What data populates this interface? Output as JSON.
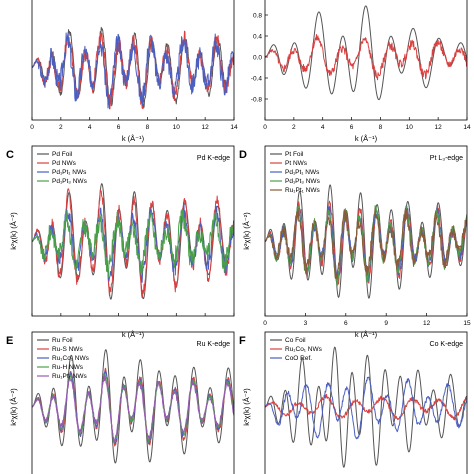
{
  "chart_data": [
    {
      "panel": "A",
      "label": "",
      "edge": "",
      "type": "line",
      "xlabel": "k (Å⁻¹)",
      "ylabel": "",
      "xlim": [
        0,
        14
      ],
      "ylim": [
        -0.75,
        1.05
      ],
      "xticks": [
        0,
        2,
        4,
        6,
        8,
        10,
        12,
        14
      ],
      "yticks": [],
      "ytick_labels": [],
      "show_xlabel": true,
      "show_xticklabels": true,
      "cut_top": true,
      "series": [
        {
          "name": "",
          "color": "#555555",
          "amp": 0.55,
          "freq": 5.5,
          "phase": 0.0,
          "decay": 0.05,
          "noise": 0.05,
          "seed": 1
        },
        {
          "name": "",
          "color": "#d94040",
          "amp": 0.5,
          "freq": 5.5,
          "phase": 0.25,
          "decay": 0.05,
          "noise": 0.12,
          "seed": 2
        },
        {
          "name": "",
          "color": "#4a5fc0",
          "amp": 0.45,
          "freq": 5.5,
          "phase": 0.5,
          "decay": 0.05,
          "noise": 0.15,
          "seed": 3
        }
      ],
      "legend": []
    },
    {
      "panel": "B",
      "label": "",
      "edge": "",
      "type": "line",
      "xlabel": "k (Å⁻¹)",
      "ylabel": "",
      "xlim": [
        0,
        14
      ],
      "ylim": [
        -1.2,
        1.2
      ],
      "xticks": [
        0,
        2,
        4,
        6,
        8,
        10,
        12,
        14
      ],
      "yticks": [
        0.8,
        0.4,
        0.0,
        -0.4,
        -0.8
      ],
      "ytick_labels": [
        "0.8",
        "0.4",
        "0.0",
        "-0.4",
        "-0.8"
      ],
      "show_xlabel": true,
      "show_xticklabels": true,
      "cut_top": true,
      "series": [
        {
          "name": "",
          "color": "#555555",
          "amp": 1.05,
          "freq": 3.8,
          "phase": 0.0,
          "decay": 0.13,
          "noise": 0.0,
          "seed": 4
        },
        {
          "name": "",
          "color": "#d94040",
          "amp": 0.35,
          "freq": 3.8,
          "phase": 0.3,
          "decay": 0.02,
          "noise": 0.08,
          "seed": 5
        }
      ],
      "legend": []
    },
    {
      "panel": "C",
      "label": "C",
      "edge": "Pd K-edge",
      "type": "line",
      "xlabel": "k (Å⁻¹)",
      "ylabel": "k²χ(k) (Å⁻²)",
      "xlim": [
        0,
        14
      ],
      "ylim": [
        -1.4,
        1.8
      ],
      "xticks": [
        0,
        2,
        4,
        6,
        8,
        10,
        12,
        14
      ],
      "yticks": [],
      "ytick_labels": [],
      "show_xlabel": true,
      "show_xticklabels": false,
      "cut_top": false,
      "series": [
        {
          "name": "Pd Foil",
          "color": "#555555",
          "amp": 1.15,
          "freq": 5.5,
          "phase": 0.0,
          "decay": 0.09,
          "noise": 0.0,
          "seed": 6
        },
        {
          "name": "Pd NWs",
          "color": "#d94040",
          "amp": 0.95,
          "freq": 5.5,
          "phase": 0.15,
          "decay": 0.04,
          "noise": 0.12,
          "seed": 7
        },
        {
          "name": "Pd₁Pt₁ NWs",
          "color": "#4a5fc0",
          "amp": 0.6,
          "freq": 5.5,
          "phase": 0.4,
          "decay": 0.02,
          "noise": 0.15,
          "seed": 8
        },
        {
          "name": "Pd₁Pt₃ NWs",
          "color": "#4aa04a",
          "amp": 0.45,
          "freq": 5.5,
          "phase": 0.7,
          "decay": 0.01,
          "noise": 0.18,
          "seed": 9
        }
      ],
      "legend": [
        "Pd Foil",
        "Pd NWs",
        "Pd₁Pt₁ NWs",
        "Pd₁Pt₃ NWs"
      ]
    },
    {
      "panel": "D",
      "label": "D",
      "edge": "Pt L₃-edge",
      "type": "line",
      "xlabel": "k (Å⁻¹)",
      "ylabel": "k²χ(k) (Å⁻²)",
      "xlim": [
        0,
        15
      ],
      "ylim": [
        -1.4,
        1.8
      ],
      "xticks": [
        0,
        3,
        6,
        9,
        12,
        15
      ],
      "yticks": [],
      "ytick_labels": [],
      "show_xlabel": true,
      "show_xticklabels": true,
      "cut_top": false,
      "series": [
        {
          "name": "Pt Foil",
          "color": "#555555",
          "amp": 1.1,
          "freq": 5.5,
          "phase": 0.0,
          "decay": 0.07,
          "noise": 0.0,
          "seed": 10
        },
        {
          "name": "Pt NWs",
          "color": "#d94040",
          "amp": 0.75,
          "freq": 5.5,
          "phase": 0.2,
          "decay": 0.05,
          "noise": 0.1,
          "seed": 11
        },
        {
          "name": "Pd₁Pt₁ NWs",
          "color": "#4a5fc0",
          "amp": 0.65,
          "freq": 5.5,
          "phase": 0.35,
          "decay": 0.05,
          "noise": 0.12,
          "seed": 12
        },
        {
          "name": "Pd₁Pt₃ NWs",
          "color": "#4aa04a",
          "amp": 0.7,
          "freq": 5.5,
          "phase": 0.5,
          "decay": 0.05,
          "noise": 0.1,
          "seed": 13
        },
        {
          "name": "Ru₁Pt₁ NWs",
          "color": "#8a5a3a",
          "amp": 0.6,
          "freq": 5.5,
          "phase": 0.6,
          "decay": 0.05,
          "noise": 0.12,
          "seed": 14
        }
      ],
      "legend": [
        "Pt Foil",
        "Pt NWs",
        "Pd₁Pt₁ NWs",
        "Pd₁Pt₃ NWs",
        "Ru₁Pt₁ NWs"
      ]
    },
    {
      "panel": "E",
      "label": "E",
      "edge": "Ru K-edge",
      "type": "line",
      "xlabel": "",
      "ylabel": "k²χ(k) (Å⁻²)",
      "xlim": [
        0,
        14
      ],
      "ylim": [
        -1.7,
        1.7
      ],
      "xticks": [
        0,
        2,
        4,
        6,
        8,
        10,
        12,
        14
      ],
      "yticks": [],
      "ytick_labels": [],
      "show_xlabel": false,
      "show_xticklabels": false,
      "cut_top": false,
      "series": [
        {
          "name": "Ru Foil",
          "color": "#555555",
          "amp": 1.3,
          "freq": 5.2,
          "phase": 0.0,
          "decay": 0.06,
          "noise": 0.0,
          "seed": 15
        },
        {
          "name": "Ru-S NWs",
          "color": "#d94040",
          "amp": 0.85,
          "freq": 5.2,
          "phase": 0.1,
          "decay": 0.05,
          "noise": 0.05,
          "seed": 16
        },
        {
          "name": "Ru₁Co₁ NWs",
          "color": "#4a5fc0",
          "amp": 0.8,
          "freq": 5.2,
          "phase": 0.15,
          "decay": 0.05,
          "noise": 0.06,
          "seed": 17
        },
        {
          "name": "Ru-H NWs",
          "color": "#4aa04a",
          "amp": 0.75,
          "freq": 5.2,
          "phase": 0.2,
          "decay": 0.05,
          "noise": 0.06,
          "seed": 18
        },
        {
          "name": "Ru₁Pt₁ NWs",
          "color": "#9b59b6",
          "amp": 0.7,
          "freq": 5.2,
          "phase": 0.25,
          "decay": 0.05,
          "noise": 0.06,
          "seed": 19
        }
      ],
      "legend": [
        "Ru Foil",
        "Ru-S NWs",
        "Ru₁Co₁ NWs",
        "Ru-H NWs",
        "Ru₁Pt₁ NWs"
      ]
    },
    {
      "panel": "F",
      "label": "F",
      "edge": "Co K-edge",
      "type": "line",
      "xlabel": "",
      "ylabel": "k²χ(k) (Å⁻²)",
      "xlim": [
        0,
        14
      ],
      "ylim": [
        -1.8,
        1.8
      ],
      "xticks": [
        0,
        2,
        4,
        6,
        8,
        10,
        12,
        14
      ],
      "yticks": [],
      "ytick_labels": [],
      "show_xlabel": false,
      "show_xticklabels": false,
      "cut_top": false,
      "series": [
        {
          "name": "Co Foil",
          "color": "#555555",
          "amp": 1.55,
          "freq": 5.5,
          "phase": 0.0,
          "decay": 0.11,
          "noise": 0.0,
          "seed": 20
        },
        {
          "name": "Ru₁Co₁ NWs",
          "color": "#d94040",
          "amp": 0.25,
          "freq": 3.2,
          "phase": 0.5,
          "decay": 0.0,
          "noise": 0.05,
          "seed": 21
        },
        {
          "name": "CoO Ref.",
          "color": "#4a5fc0",
          "amp": 0.75,
          "freq": 4.5,
          "phase": 1.0,
          "decay": 0.06,
          "noise": 0.05,
          "seed": 22
        }
      ],
      "legend": [
        "Co Foil",
        "Ru₁Co₁ NWs",
        "CoO Ref."
      ]
    }
  ]
}
